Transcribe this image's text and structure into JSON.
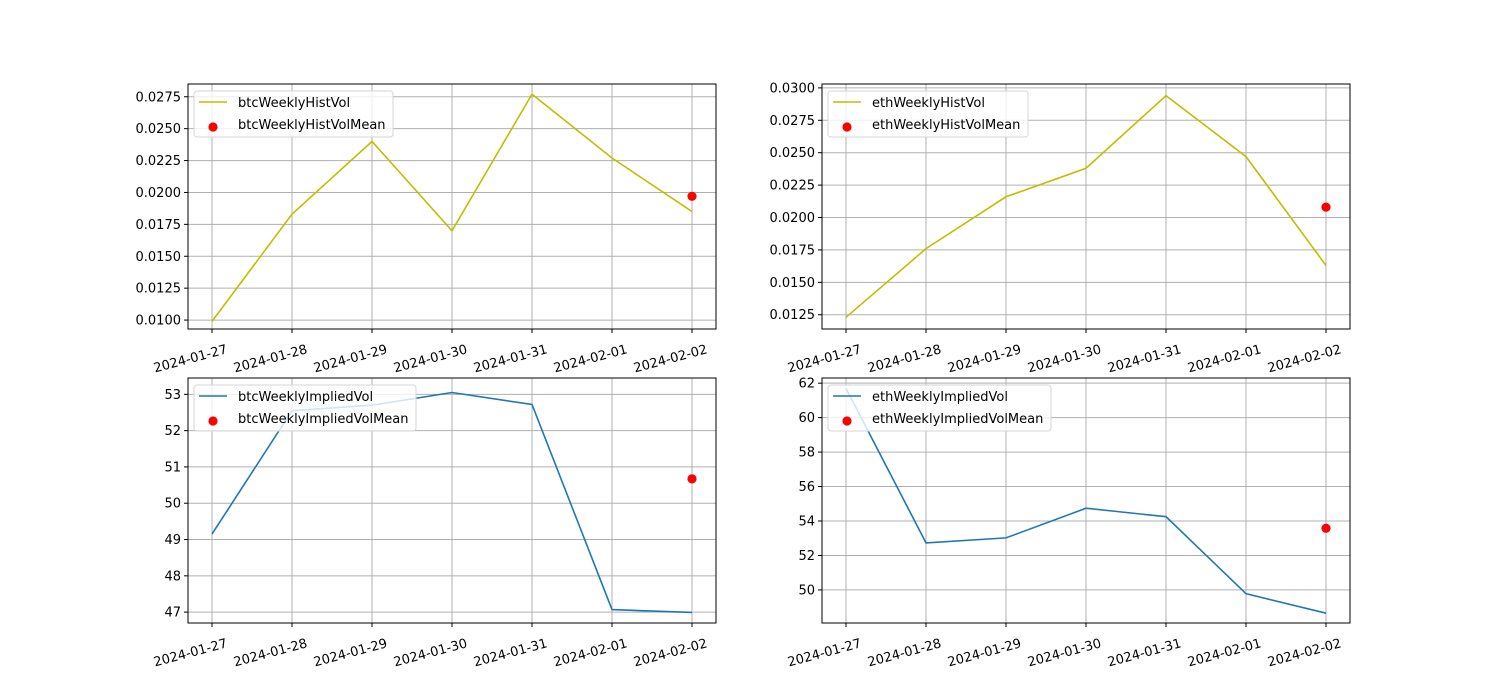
{
  "chart_data": [
    {
      "type": "line",
      "title": "",
      "xlabel": "",
      "ylabel": "",
      "x": [
        "2024-01-27",
        "2024-01-28",
        "2024-01-29",
        "2024-01-30",
        "2024-01-31",
        "2024-02-01",
        "2024-02-02"
      ],
      "ylim": [
        0.0093,
        0.0285
      ],
      "yticks": [
        0.01,
        0.0125,
        0.015,
        0.0175,
        0.02,
        0.0225,
        0.025,
        0.0275
      ],
      "ytick_labels": [
        "0.0100",
        "0.0125",
        "0.0150",
        "0.0175",
        "0.0200",
        "0.0225",
        "0.0250",
        "0.0275"
      ],
      "grid": true,
      "legend": "top-left",
      "series": [
        {
          "name": "btcWeeklyHistVol",
          "kind": "line",
          "color": "#bfbf00",
          "values": [
            0.0099,
            0.0183,
            0.024,
            0.017,
            0.0277,
            0.0227,
            0.0185
          ]
        }
      ],
      "points": [
        {
          "name": "btcWeeklyHistVolMean",
          "kind": "scatter",
          "color": "#ff0000",
          "x": "2024-02-02",
          "y": 0.0197
        }
      ]
    },
    {
      "type": "line",
      "title": "",
      "xlabel": "",
      "ylabel": "",
      "x": [
        "2024-01-27",
        "2024-01-28",
        "2024-01-29",
        "2024-01-30",
        "2024-01-31",
        "2024-02-01",
        "2024-02-02"
      ],
      "ylim": [
        0.0114,
        0.0303
      ],
      "yticks": [
        0.0125,
        0.015,
        0.0175,
        0.02,
        0.0225,
        0.025,
        0.0275,
        0.03
      ],
      "ytick_labels": [
        "0.0125",
        "0.0150",
        "0.0175",
        "0.0200",
        "0.0225",
        "0.0250",
        "0.0275",
        "0.0300"
      ],
      "grid": true,
      "legend": "top-left",
      "series": [
        {
          "name": "ethWeeklyHistVol",
          "kind": "line",
          "color": "#bfbf00",
          "values": [
            0.0123,
            0.0176,
            0.0216,
            0.0238,
            0.0294,
            0.0247,
            0.0163
          ]
        }
      ],
      "points": [
        {
          "name": "ethWeeklyHistVolMean",
          "kind": "scatter",
          "color": "#ff0000",
          "x": "2024-02-02",
          "y": 0.0208
        }
      ]
    },
    {
      "type": "line",
      "title": "",
      "xlabel": "",
      "ylabel": "",
      "x": [
        "2024-01-27",
        "2024-01-28",
        "2024-01-29",
        "2024-01-30",
        "2024-01-31",
        "2024-02-01",
        "2024-02-02"
      ],
      "ylim": [
        46.7,
        53.45
      ],
      "yticks": [
        47,
        48,
        49,
        50,
        51,
        52,
        53
      ],
      "ytick_labels": [
        "47",
        "48",
        "49",
        "50",
        "51",
        "52",
        "53"
      ],
      "grid": true,
      "legend": "top-left",
      "series": [
        {
          "name": "btcWeeklyImpliedVol",
          "kind": "line",
          "color": "#1f77b4",
          "values": [
            49.15,
            52.55,
            52.7,
            53.05,
            52.72,
            47.07,
            46.99
          ]
        }
      ],
      "points": [
        {
          "name": "btcWeeklyImpliedVolMean",
          "kind": "scatter",
          "color": "#ff0000",
          "x": "2024-02-02",
          "y": 50.67
        }
      ]
    },
    {
      "type": "line",
      "title": "",
      "xlabel": "",
      "ylabel": "",
      "x": [
        "2024-01-27",
        "2024-01-28",
        "2024-01-29",
        "2024-01-30",
        "2024-01-31",
        "2024-02-01",
        "2024-02-02"
      ],
      "ylim": [
        48.08,
        62.3
      ],
      "yticks": [
        50,
        52,
        54,
        56,
        58,
        60,
        62
      ],
      "ytick_labels": [
        "50",
        "52",
        "54",
        "56",
        "58",
        "60",
        "62"
      ],
      "grid": true,
      "legend": "top-left",
      "series": [
        {
          "name": "ethWeeklyImpliedVol",
          "kind": "line",
          "color": "#1f77b4",
          "values": [
            61.7,
            52.73,
            53.02,
            54.74,
            54.25,
            49.78,
            48.65
          ]
        }
      ],
      "points": [
        {
          "name": "ethWeeklyImpliedVolMean",
          "kind": "scatter",
          "color": "#ff0000",
          "x": "2024-02-02",
          "y": 53.58
        }
      ]
    }
  ]
}
